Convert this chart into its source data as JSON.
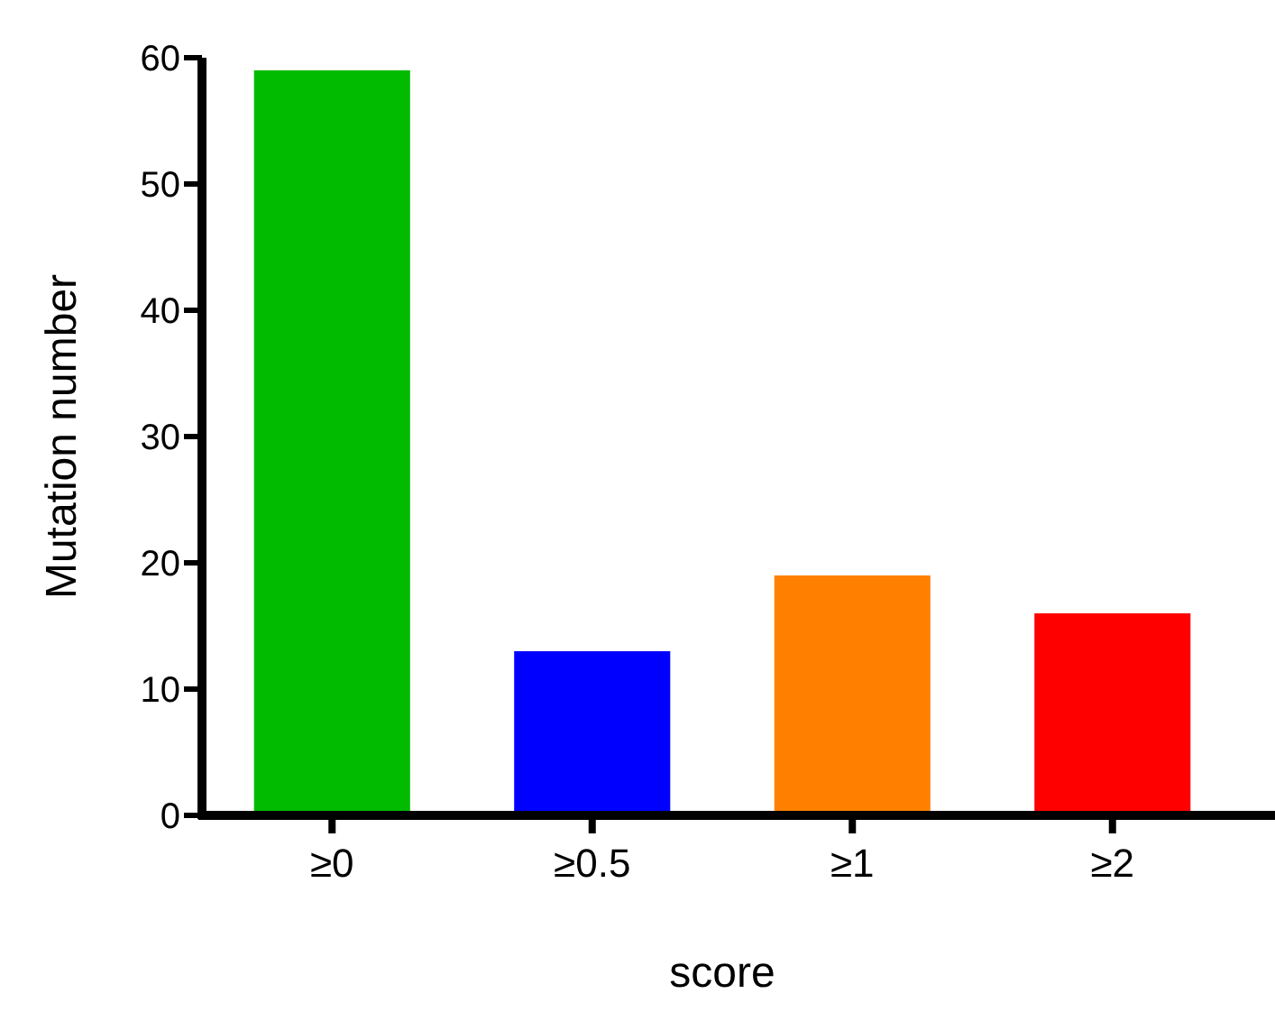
{
  "chart_data": {
    "type": "bar",
    "xlabel": "score",
    "ylabel": "Mutation number",
    "categories": [
      "≥0",
      "≥0.5",
      "≥1",
      "≥2"
    ],
    "values": [
      59,
      13,
      19,
      16
    ],
    "colors": [
      "#00bb00",
      "#0000ff",
      "#ff8000",
      "#ff0000"
    ],
    "ylim": [
      0,
      60
    ],
    "yticks": [
      0,
      10,
      20,
      30,
      40,
      50,
      60
    ],
    "grid": false
  }
}
